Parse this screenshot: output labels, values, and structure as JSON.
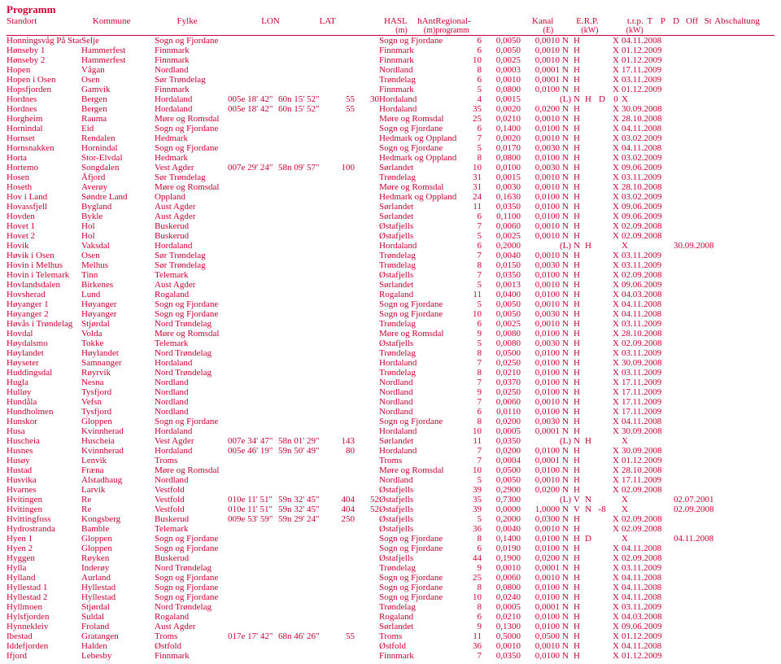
{
  "title": "Programm",
  "headers": {
    "row1": [
      "Standort",
      "Kommune",
      "Fylke",
      "LON",
      "LAT",
      "HASL",
      "hAnt",
      "Regional-",
      "Kanal",
      "E.R.P.",
      "t.r.p.",
      "T",
      "P",
      "D",
      "Off",
      "St",
      "Abschaltung"
    ],
    "row2": [
      "",
      "",
      "",
      "",
      "",
      "(m)",
      "(m)",
      "programm",
      "(E)",
      "(kW)",
      "(kW)",
      "",
      "",
      "",
      "",
      "",
      ""
    ]
  },
  "rows": [
    [
      "Honningsvåg På Stad",
      "Selje",
      "Sogn og Fjordane",
      "",
      "",
      "",
      "",
      "Sogn og Fjordane",
      "6",
      "0,0050",
      "0,0010",
      "N",
      "H",
      "",
      "",
      "X",
      "04.11.2008"
    ],
    [
      "Hønseby 1",
      "Hammerfest",
      "Finnmark",
      "",
      "",
      "",
      "",
      "Finnmark",
      "6",
      "0,0050",
      "0,0010",
      "N",
      "H",
      "",
      "",
      "X",
      "01.12.2009"
    ],
    [
      "Hønseby 2",
      "Hammerfest",
      "Finnmark",
      "",
      "",
      "",
      "",
      "Finnmark",
      "10",
      "0,0025",
      "0,0010",
      "N",
      "H",
      "",
      "",
      "X",
      "01.12.2009"
    ],
    [
      "Hopen",
      "Vågan",
      "Nordland",
      "",
      "",
      "",
      "",
      "Nordland",
      "8",
      "0,0003",
      "0,0001",
      "N",
      "H",
      "",
      "",
      "X",
      "17.11.2009"
    ],
    [
      "Hopen i Osen",
      "Osen",
      "Sør Trøndelag",
      "",
      "",
      "",
      "",
      "Trøndelag",
      "6",
      "0,0010",
      "0,0001",
      "N",
      "H",
      "",
      "",
      "X",
      "03.11.2009"
    ],
    [
      "Hopsfjorden",
      "Gamvik",
      "Finnmark",
      "",
      "",
      "",
      "",
      "Finnmark",
      "5",
      "0,0800",
      "0,0100",
      "N",
      "H",
      "",
      "",
      "X",
      "01.12.2009"
    ],
    [
      "Hordnes",
      "Bergen",
      "Hordaland",
      "005e 18' 42\"",
      "60n 15' 52\"",
      "55",
      "30",
      "Hordaland",
      "4",
      "0,0015",
      "",
      "(L)",
      "N",
      "H",
      "D",
      "0",
      "X"
    ],
    [
      "Hordnes",
      "Bergen",
      "Hordaland",
      "005e 18' 42\"",
      "60n 15' 52\"",
      "55",
      "",
      "Hordaland",
      "35",
      "0,0020",
      "0,0200",
      "N",
      "H",
      "",
      "",
      "X",
      "30.09.2008"
    ],
    [
      "Horgheim",
      "Rauma",
      "Møre og Romsdal",
      "",
      "",
      "",
      "",
      "Møre og Romsdal",
      "25",
      "0,0210",
      "0,0010",
      "N",
      "H",
      "",
      "",
      "X",
      "28.10.2008"
    ],
    [
      "Hornindal",
      "Eid",
      "Sogn og Fjordane",
      "",
      "",
      "",
      "",
      "Sogn og Fjordane",
      "6",
      "0,1400",
      "0,0100",
      "N",
      "H",
      "",
      "",
      "X",
      "04.11.2008"
    ],
    [
      "Hornset",
      "Rendalen",
      "Hedmark",
      "",
      "",
      "",
      "",
      "Hedmark og Oppland",
      "7",
      "0,0020",
      "0,0010",
      "N",
      "H",
      "",
      "",
      "X",
      "03.02.2009"
    ],
    [
      "Hornsnakken",
      "Hornindal",
      "Sogn og Fjordane",
      "",
      "",
      "",
      "",
      "Sogn og Fjordane",
      "5",
      "0,0170",
      "0,0030",
      "N",
      "H",
      "",
      "",
      "X",
      "04.11.2008"
    ],
    [
      "Horta",
      "Stor-Elvdal",
      "Hedmark",
      "",
      "",
      "",
      "",
      "Hedmark og Oppland",
      "8",
      "0,0800",
      "0,0100",
      "N",
      "H",
      "",
      "",
      "X",
      "03.02.2009"
    ],
    [
      "Hortemo",
      "Songdalen",
      "Vest Agder",
      "007e 29' 24\"",
      "58n 09' 57\"",
      "100",
      "",
      "Sørlandet",
      "10",
      "0,0100",
      "0,0030",
      "N",
      "H",
      "",
      "",
      "X",
      "09.06.2009"
    ],
    [
      "Hosen",
      "Åfjord",
      "Sør Trøndelag",
      "",
      "",
      "",
      "",
      "Trøndelag",
      "31",
      "0,0015",
      "0,0010",
      "N",
      "H",
      "",
      "",
      "X",
      "03.11.2009"
    ],
    [
      "Hoseth",
      "Averøy",
      "Møre og Romsdal",
      "",
      "",
      "",
      "",
      "Møre og Romsdal",
      "31",
      "0,0030",
      "0,0010",
      "N",
      "H",
      "",
      "",
      "X",
      "28.10.2008"
    ],
    [
      "Hov i Land",
      "Søndre Land",
      "Oppland",
      "",
      "",
      "",
      "",
      "Hedmark og Oppland",
      "24",
      "0,1630",
      "0,0100",
      "N",
      "H",
      "",
      "",
      "X",
      "03.02.2009"
    ],
    [
      "Hovassfjell",
      "Bygland",
      "Aust Agder",
      "",
      "",
      "",
      "",
      "Sørlandet",
      "11",
      "0,0350",
      "0,0100",
      "N",
      "H",
      "",
      "",
      "X",
      "09.06.2009"
    ],
    [
      "Hovden",
      "Bykle",
      "Aust Agder",
      "",
      "",
      "",
      "",
      "Sørlandet",
      "6",
      "0,1100",
      "0,0100",
      "N",
      "H",
      "",
      "",
      "X",
      "09.06.2009"
    ],
    [
      "Hovet 1",
      "Hol",
      "Buskerud",
      "",
      "",
      "",
      "",
      "Østafjells",
      "7",
      "0,0060",
      "0,0010",
      "N",
      "H",
      "",
      "",
      "X",
      "02.09.2008"
    ],
    [
      "Hovet 2",
      "Hol",
      "Buskerud",
      "",
      "",
      "",
      "",
      "Østafjells",
      "5",
      "0,0025",
      "0,0010",
      "N",
      "H",
      "",
      "",
      "X",
      "02.09.2008"
    ],
    [
      "Hovik",
      "Vaksdal",
      "Hordaland",
      "",
      "",
      "",
      "",
      "Hordaland",
      "6",
      "0,2000",
      "",
      "(L)",
      "N",
      "H",
      "",
      "",
      "X",
      "30.09.2008"
    ],
    [
      "Høvik i Osen",
      "Osen",
      "Sør Trøndelag",
      "",
      "",
      "",
      "",
      "Trøndelag",
      "7",
      "0,0040",
      "0,0010",
      "N",
      "H",
      "",
      "",
      "X",
      "03.11.2009"
    ],
    [
      "Hovin i Melhus",
      "Melhus",
      "Sør Trøndelag",
      "",
      "",
      "",
      "",
      "Trøndelag",
      "8",
      "0,0150",
      "0,0030",
      "N",
      "H",
      "",
      "",
      "X",
      "03.11.2009"
    ],
    [
      "Hovin i Telemark",
      "Tinn",
      "Telemark",
      "",
      "",
      "",
      "",
      "Østafjells",
      "7",
      "0,0350",
      "0,0100",
      "N",
      "H",
      "",
      "",
      "X",
      "02.09.2008"
    ],
    [
      "Hovlandsdalen",
      "Birkenes",
      "Aust Agder",
      "",
      "",
      "",
      "",
      "Sørlandet",
      "5",
      "0,0013",
      "0,0010",
      "N",
      "H",
      "",
      "",
      "X",
      "09.06.2009"
    ],
    [
      "Hovsherad",
      "Lund",
      "Rogaland",
      "",
      "",
      "",
      "",
      "Rogaland",
      "11",
      "0,0400",
      "0,0100",
      "N",
      "H",
      "",
      "",
      "X",
      "04.03.2008"
    ],
    [
      "Høyanger 1",
      "Høyanger",
      "Sogn og Fjordane",
      "",
      "",
      "",
      "",
      "Sogn og Fjordane",
      "5",
      "0,0050",
      "0,0010",
      "N",
      "H",
      "",
      "",
      "X",
      "04.11.2008"
    ],
    [
      "Høyanger 2",
      "Høyanger",
      "Sogn og Fjordane",
      "",
      "",
      "",
      "",
      "Sogn og Fjordane",
      "10",
      "0,0050",
      "0,0030",
      "N",
      "H",
      "",
      "",
      "X",
      "04.11.2008"
    ],
    [
      "Høvås i Trøndelag",
      "Stjørdal",
      "Nord Trøndelag",
      "",
      "",
      "",
      "",
      "Trøndelag",
      "6",
      "0,0025",
      "0,0010",
      "N",
      "H",
      "",
      "",
      "X",
      "03.11.2009"
    ],
    [
      "Hovdal",
      "Volda",
      "Møre og Romsdal",
      "",
      "",
      "",
      "",
      "Møre og Romsdal",
      "9",
      "0,0080",
      "0,0100",
      "N",
      "H",
      "",
      "",
      "X",
      "28.10.2008"
    ],
    [
      "Høydalsmo",
      "Tokke",
      "Telemark",
      "",
      "",
      "",
      "",
      "Østafjells",
      "5",
      "0,0080",
      "0,0030",
      "N",
      "H",
      "",
      "",
      "X",
      "02.09.2008"
    ],
    [
      "Høylandet",
      "Høylandet",
      "Nord Trøndelag",
      "",
      "",
      "",
      "",
      "Trøndelag",
      "8",
      "0,0500",
      "0,0100",
      "N",
      "H",
      "",
      "",
      "X",
      "03.11.2009"
    ],
    [
      "Høyseter",
      "Samnanger",
      "Hordaland",
      "",
      "",
      "",
      "",
      "Hordaland",
      "7",
      "0,0250",
      "0,0100",
      "N",
      "H",
      "",
      "",
      "X",
      "30.09.2008"
    ],
    [
      "Huddingsdal",
      "Røyrvik",
      "Nord Trøndelag",
      "",
      "",
      "",
      "",
      "Trøndelag",
      "8",
      "0,0210",
      "0,0100",
      "N",
      "H",
      "",
      "",
      "X",
      "03.11.2009"
    ],
    [
      "Hugla",
      "Nesna",
      "Nordland",
      "",
      "",
      "",
      "",
      "Nordland",
      "7",
      "0,0370",
      "0,0100",
      "N",
      "H",
      "",
      "",
      "X",
      "17.11.2009"
    ],
    [
      "Hulløy",
      "Tysfjord",
      "Nordland",
      "",
      "",
      "",
      "",
      "Nordland",
      "9",
      "0,0250",
      "0,0100",
      "N",
      "H",
      "",
      "",
      "X",
      "17.11.2009"
    ],
    [
      "Hundåla",
      "Vefsn",
      "Nordland",
      "",
      "",
      "",
      "",
      "Nordland",
      "7",
      "0,0060",
      "0,0010",
      "N",
      "H",
      "",
      "",
      "X",
      "17.11.2009"
    ],
    [
      "Hundholmen",
      "Tysfjord",
      "Nordland",
      "",
      "",
      "",
      "",
      "Nordland",
      "6",
      "0,0110",
      "0,0100",
      "N",
      "H",
      "",
      "",
      "X",
      "17.11.2009"
    ],
    [
      "Hunskor",
      "Gloppen",
      "Sogn og Fjordane",
      "",
      "",
      "",
      "",
      "Sogn og Fjordane",
      "8",
      "0,0200",
      "0,0030",
      "N",
      "H",
      "",
      "",
      "X",
      "04.11.2008"
    ],
    [
      "Husa",
      "Kvinnherad",
      "Hordaland",
      "",
      "",
      "",
      "",
      "Hordaland",
      "10",
      "0,0005",
      "0,0001",
      "N",
      "H",
      "",
      "",
      "X",
      "30.09.2008"
    ],
    [
      "Huscheia",
      "Huscheia",
      "Vest Agder",
      "007e 34' 47\"",
      "58n 01' 29\"",
      "143",
      "",
      "Sørlandet",
      "11",
      "0,0350",
      "",
      "(L)",
      "N",
      "H",
      "",
      "",
      "X",
      ""
    ],
    [
      "Husnes",
      "Kvinnherad",
      "Hordaland",
      "005e 46' 19\"",
      "59n 50' 49\"",
      "80",
      "",
      "Hordaland",
      "7",
      "0,0200",
      "0,0100",
      "N",
      "H",
      "",
      "",
      "X",
      "30.09.2008"
    ],
    [
      "Husøy",
      "Lenvik",
      "Troms",
      "",
      "",
      "",
      "",
      "Troms",
      "7",
      "0,0004",
      "0,0001",
      "N",
      "H",
      "",
      "",
      "X",
      "01.12.2009"
    ],
    [
      "Hustad",
      "Fræna",
      "Møre og Romsdal",
      "",
      "",
      "",
      "",
      "Møre og Romsdal",
      "10",
      "0,0500",
      "0,0100",
      "N",
      "H",
      "",
      "",
      "X",
      "28.10.2008"
    ],
    [
      "Husvika",
      "Alstadhaug",
      "Nordland",
      "",
      "",
      "",
      "",
      "Nordland",
      "5",
      "0,0050",
      "0,0010",
      "N",
      "H",
      "",
      "",
      "X",
      "17.11.2009"
    ],
    [
      "Hvarnes",
      "Larvik",
      "Vestfold",
      "",
      "",
      "",
      "",
      "Østafjells",
      "39",
      "0,2900",
      "0,0200",
      "N",
      "H",
      "",
      "",
      "X",
      "02.09.2008"
    ],
    [
      "Hvitingen",
      "Re",
      "Vestfold",
      "010e 11' 51\"",
      "59n 32' 45\"",
      "404",
      "52",
      "Østafjells",
      "35",
      "0,7300",
      "",
      "(L)",
      "V",
      "N",
      "",
      "",
      "X",
      "02.07.2001"
    ],
    [
      "Hvitingen",
      "Re",
      "Vestfold",
      "010e 11' 51\"",
      "59n 32' 45\"",
      "404",
      "52",
      "Østafjells",
      "39",
      "0,0000",
      "1,0000",
      "N",
      "V",
      "N",
      "-8",
      "",
      "X",
      "02.09.2008"
    ],
    [
      "Hvittingfoss",
      "Kongsberg",
      "Buskerud",
      "009e 53' 59\"",
      "59n 29' 24\"",
      "250",
      "",
      "Østafjells",
      "5",
      "0,2000",
      "0,0300",
      "N",
      "H",
      "",
      "",
      "X",
      "02.09.2008"
    ],
    [
      "Hydrostranda",
      "Bamble",
      "Telemark",
      "",
      "",
      "",
      "",
      "Østafjells",
      "36",
      "0,0040",
      "0,0010",
      "N",
      "H",
      "",
      "",
      "X",
      "02.09.2008"
    ],
    [
      "Hyen 1",
      "Gloppen",
      "Sogn og Fjordane",
      "",
      "",
      "",
      "",
      "Sogn og Fjordane",
      "8",
      "0,1400",
      "0,0100",
      "N",
      "H",
      "D",
      "",
      "",
      "X",
      "04.11.2008"
    ],
    [
      "Hyen 2",
      "Gloppen",
      "Sogn og Fjordane",
      "",
      "",
      "",
      "",
      "Sogn og Fjordane",
      "6",
      "0,0190",
      "0,0100",
      "N",
      "H",
      "",
      "",
      "X",
      "04.11.2008"
    ],
    [
      "Hyggen",
      "Røyken",
      "Buskerud",
      "",
      "",
      "",
      "",
      "Østafjells",
      "44",
      "0,1900",
      "0,0200",
      "N",
      "H",
      "",
      "",
      "X",
      "02.09.2008"
    ],
    [
      "Hylla",
      "Inderøy",
      "Nord Trøndelag",
      "",
      "",
      "",
      "",
      "Trøndelag",
      "9",
      "0,0010",
      "0,0001",
      "N",
      "H",
      "",
      "",
      "X",
      "03.11.2009"
    ],
    [
      "Hylland",
      "Aurland",
      "Sogn og Fjordane",
      "",
      "",
      "",
      "",
      "Sogn og Fjordane",
      "25",
      "0,0060",
      "0,0010",
      "N",
      "H",
      "",
      "",
      "X",
      "04.11.2008"
    ],
    [
      "Hyllestad 1",
      "Hyllestad",
      "Sogn og Fjordane",
      "",
      "",
      "",
      "",
      "Sogn og Fjordane",
      "8",
      "0,0800",
      "0,0100",
      "N",
      "H",
      "",
      "",
      "X",
      "04.11.2008"
    ],
    [
      "Hyllestad 2",
      "Hyllestad",
      "Sogn og Fjordane",
      "",
      "",
      "",
      "",
      "Sogn og Fjordane",
      "10",
      "0,0240",
      "0,0100",
      "N",
      "H",
      "",
      "",
      "X",
      "04.11.2008"
    ],
    [
      "Hyllmoen",
      "Stjørdal",
      "Nord Trøndelag",
      "",
      "",
      "",
      "",
      "Trøndelag",
      "8",
      "0,0005",
      "0,0001",
      "N",
      "H",
      "",
      "",
      "X",
      "03.11.2009"
    ],
    [
      "Hylsfjorden",
      "Suldal",
      "Rogaland",
      "",
      "",
      "",
      "",
      "Rogaland",
      "6",
      "0,0210",
      "0,0100",
      "N",
      "H",
      "",
      "",
      "X",
      "04.03.2008"
    ],
    [
      "Hynnekleiv",
      "Froland",
      "Aust Agder",
      "",
      "",
      "",
      "",
      "Sørlandet",
      "9",
      "0,1300",
      "0,0100",
      "N",
      "H",
      "",
      "",
      "X",
      "09.06.2009"
    ],
    [
      "Ibestad",
      "Gratangen",
      "Troms",
      "017e 17' 42\"",
      "68n 46' 26\"",
      "55",
      "",
      "Troms",
      "11",
      "0,5000",
      "0,0500",
      "N",
      "H",
      "",
      "",
      "X",
      "01.12.2009"
    ],
    [
      "Iddefjorden",
      "Halden",
      "Østfold",
      "",
      "",
      "",
      "",
      "Østfold",
      "36",
      "0,0010",
      "0,0010",
      "N",
      "H",
      "",
      "",
      "X",
      "04.11.2008"
    ],
    [
      "Ifjord",
      "Lebesby",
      "Finnmark",
      "",
      "",
      "",
      "",
      "Finnmark",
      "7",
      "0,0350",
      "0,0100",
      "N",
      "H",
      "",
      "",
      "X",
      "01.12.2009"
    ]
  ]
}
